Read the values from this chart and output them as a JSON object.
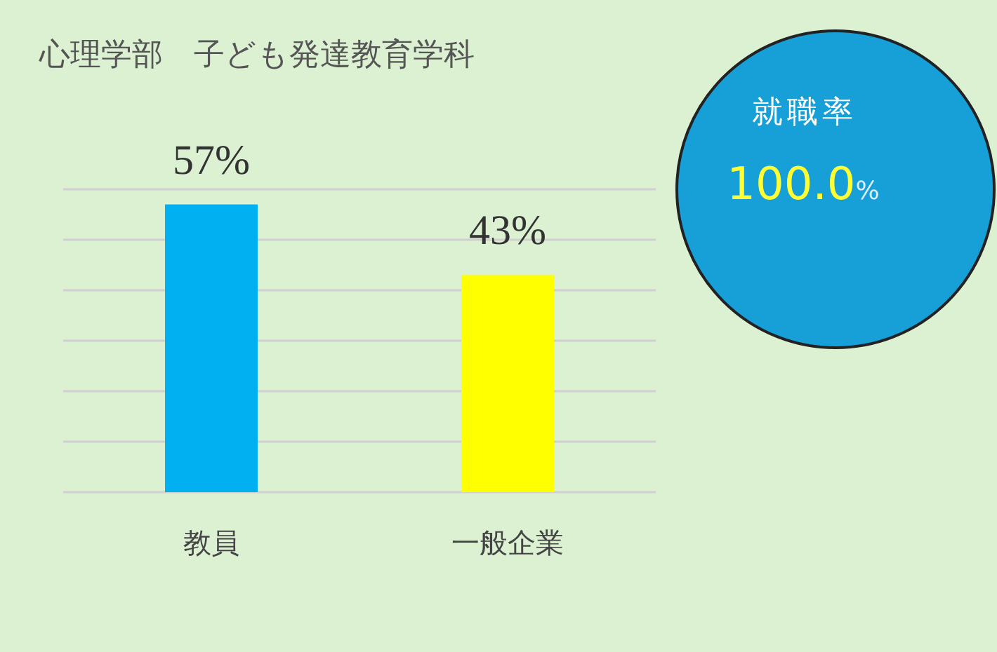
{
  "chart_data": [
    {
      "type": "bar",
      "title": "心理学部　子ども発達教育学科",
      "categories": [
        "教員",
        "一般企業"
      ],
      "values": [
        57,
        43
      ],
      "colors": [
        "#00b0f0",
        "#ffff00"
      ],
      "value_labels": [
        "57%",
        "43%"
      ],
      "ylim": [
        0,
        60
      ],
      "yticks": [
        {
          "value": 0,
          "label": null
        },
        {
          "value": 10,
          "label": null
        },
        {
          "value": 20,
          "label": null
        },
        {
          "value": 30,
          "label": null
        },
        {
          "value": 40,
          "label": null
        },
        {
          "value": 50,
          "label": null
        },
        {
          "value": 60,
          "label": null
        }
      ],
      "grid": "y"
    },
    {
      "type": "other",
      "title": "就職率",
      "annotations": [
        "100.0%"
      ]
    }
  ]
}
